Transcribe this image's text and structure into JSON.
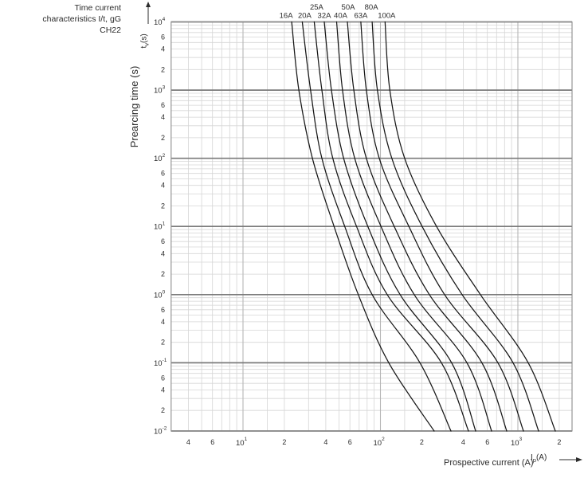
{
  "title": {
    "lines": [
      "Time current",
      "characteristics I/t, gG",
      "CH22"
    ]
  },
  "x_axis": {
    "title": "Prospective current (A)",
    "symbol": {
      "base": "I",
      "sub": "p",
      "rest": "(A)"
    },
    "scale": "log",
    "range_A": [
      3,
      2480
    ],
    "major_ticks": [
      {
        "value": 10,
        "exp": "1"
      },
      {
        "value": 100,
        "exp": "2"
      },
      {
        "value": 1000,
        "exp": "3"
      }
    ],
    "minor_tick_labels": [
      {
        "value": 4,
        "label": "4"
      },
      {
        "value": 6,
        "label": "6"
      },
      {
        "value": 20,
        "label": "2"
      },
      {
        "value": 40,
        "label": "4"
      },
      {
        "value": 60,
        "label": "6"
      },
      {
        "value": 200,
        "label": "2"
      },
      {
        "value": 400,
        "label": "4"
      },
      {
        "value": 600,
        "label": "6"
      },
      {
        "value": 2000,
        "label": "2"
      }
    ]
  },
  "y_axis": {
    "title": "Prearcing time (s)",
    "symbol": {
      "base": "t",
      "sub": "v",
      "rest": "(s)"
    },
    "scale": "log",
    "range_s": [
      0.01,
      10000
    ],
    "major_ticks": [
      {
        "value": 10000,
        "exp": "4"
      },
      {
        "value": 1000,
        "exp": "3"
      },
      {
        "value": 100,
        "exp": "2"
      },
      {
        "value": 10,
        "exp": "1"
      },
      {
        "value": 1,
        "exp": "0"
      },
      {
        "value": 0.1,
        "exp": "-1"
      },
      {
        "value": 0.01,
        "exp": "-2"
      }
    ],
    "minor_tick_labels": [
      {
        "value": 6000,
        "label": "6"
      },
      {
        "value": 4000,
        "label": "4"
      },
      {
        "value": 2000,
        "label": "2"
      },
      {
        "value": 600,
        "label": "6"
      },
      {
        "value": 400,
        "label": "4"
      },
      {
        "value": 200,
        "label": "2"
      },
      {
        "value": 60,
        "label": "6"
      },
      {
        "value": 40,
        "label": "4"
      },
      {
        "value": 20,
        "label": "2"
      },
      {
        "value": 6,
        "label": "6"
      },
      {
        "value": 4,
        "label": "4"
      },
      {
        "value": 2,
        "label": "2"
      },
      {
        "value": 0.6,
        "label": "6"
      },
      {
        "value": 0.4,
        "label": "4"
      },
      {
        "value": 0.2,
        "label": "2"
      },
      {
        "value": 0.06,
        "label": "6"
      },
      {
        "value": 0.04,
        "label": "4"
      },
      {
        "value": 0.02,
        "label": "2"
      }
    ]
  },
  "colors": {
    "text": "#2b2b2b",
    "curve": "#161616",
    "grid_minor": "#d6d6d6",
    "grid_major_h": "#7a7a7a",
    "grid_major_v": "#b6b6b6",
    "border": "#8c8c8c"
  },
  "chart_data": {
    "type": "line",
    "title": "Time current characteristics I/t, gG CH22",
    "xlabel": "Prospective current (A)",
    "ylabel": "Prearcing time (s)",
    "x_scale": "log",
    "y_scale": "log",
    "xlim": [
      3,
      2480
    ],
    "ylim": [
      0.01,
      10000
    ],
    "grid": true,
    "legend_position": "labels-above-curves",
    "times_s": [
      10000,
      1000,
      100,
      10,
      1,
      0.1,
      0.01
    ],
    "series": [
      {
        "name": "16A",
        "label_row": 2,
        "currents_A": [
          22.6,
          25.5,
          32,
          46,
          69,
          115,
          246
        ]
      },
      {
        "name": "20A",
        "label_row": 2,
        "currents_A": [
          27,
          31,
          37.5,
          55,
          87,
          194,
          326
        ]
      },
      {
        "name": "25A",
        "label_row": 1,
        "currents_A": [
          33,
          37.5,
          45,
          67,
          112,
          278,
          437
        ]
      },
      {
        "name": "32A",
        "label_row": 2,
        "currents_A": [
          39,
          44,
          54,
          81,
          139,
          330,
          493
        ]
      },
      {
        "name": "40A",
        "label_row": 2,
        "currents_A": [
          48,
          53,
          65,
          101,
          176,
          426,
          644
        ]
      },
      {
        "name": "50A",
        "label_row": 1,
        "currents_A": [
          57.5,
          64,
          79,
          126,
          227,
          548,
          830
        ]
      },
      {
        "name": "63A",
        "label_row": 2,
        "currents_A": [
          72,
          79,
          98,
          161,
          293,
          716,
          1098
        ]
      },
      {
        "name": "80A",
        "label_row": 1,
        "currents_A": [
          87,
          95,
          121,
          201,
          393,
          923,
          1415
        ]
      },
      {
        "name": "100A",
        "label_row": 2,
        "currents_A": [
          108,
          117,
          150,
          256,
          534,
          1190,
          1872
        ]
      }
    ]
  }
}
